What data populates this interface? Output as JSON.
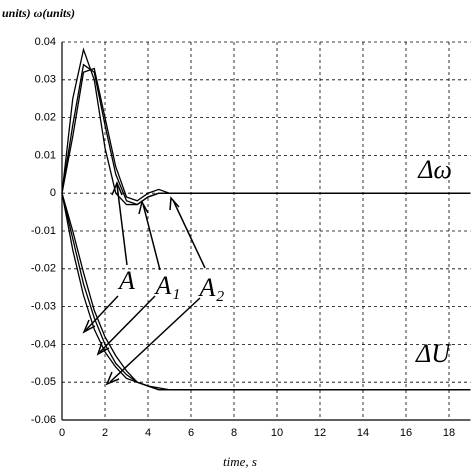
{
  "chart_data": {
    "type": "line",
    "ylabel": "units) ω(units)",
    "xlabel": "time, s",
    "x": [
      0,
      0.5,
      1,
      1.5,
      2,
      2.5,
      3,
      3.5,
      4,
      4.5,
      5,
      6,
      8,
      10,
      12,
      14,
      16,
      18,
      19
    ],
    "series": [
      {
        "color": "#000000",
        "values": [
          0,
          0.025,
          0.038,
          0.03,
          0.012,
          0.0,
          -0.003,
          -0.003,
          -0.001,
          0,
          0,
          0,
          0,
          0,
          0,
          0,
          0,
          0,
          0
        ]
      },
      {
        "color": "#000000",
        "values": [
          0,
          0.018,
          0.034,
          0.032,
          0.018,
          0.005,
          -0.002,
          -0.003,
          -0.001,
          0,
          0,
          0,
          0,
          0,
          0,
          0,
          0,
          0,
          0
        ]
      },
      {
        "color": "#000000",
        "values": [
          0,
          0.015,
          0.032,
          0.033,
          0.02,
          0.007,
          -0.001,
          -0.002,
          0,
          0.001,
          0,
          0,
          0,
          0,
          0,
          0,
          0,
          0,
          0
        ]
      },
      {
        "color": "#000000",
        "values": [
          0,
          -0.015,
          -0.027,
          -0.036,
          -0.042,
          -0.046,
          -0.049,
          -0.05,
          -0.051,
          -0.0515,
          -0.052,
          -0.052,
          -0.052,
          -0.052,
          -0.052,
          -0.052,
          -0.052,
          -0.052,
          -0.052
        ]
      },
      {
        "color": "#000000",
        "values": [
          0,
          -0.012,
          -0.024,
          -0.033,
          -0.04,
          -0.045,
          -0.048,
          -0.05,
          -0.051,
          -0.052,
          -0.052,
          -0.052,
          -0.052,
          -0.052,
          -0.052,
          -0.052,
          -0.052,
          -0.052,
          -0.052
        ]
      },
      {
        "color": "#000000",
        "values": [
          0,
          -0.01,
          -0.021,
          -0.031,
          -0.038,
          -0.043,
          -0.047,
          -0.05,
          -0.051,
          -0.052,
          -0.052,
          -0.052,
          -0.052,
          -0.052,
          -0.052,
          -0.052,
          -0.052,
          -0.052,
          -0.052
        ]
      }
    ],
    "annotations": [
      "A",
      "A₁",
      "A₂",
      "Δω",
      "ΔU"
    ],
    "xlim": [
      0,
      19
    ],
    "xticks": [
      0,
      2,
      4,
      6,
      8,
      10,
      12,
      14,
      16,
      18
    ],
    "ylim": [
      -0.06,
      0.04
    ],
    "yticks": [
      0.04,
      0.03,
      0.02,
      0.01,
      0,
      -0.01,
      -0.02,
      -0.03,
      -0.04,
      -0.05,
      -0.06
    ],
    "grid": true
  }
}
